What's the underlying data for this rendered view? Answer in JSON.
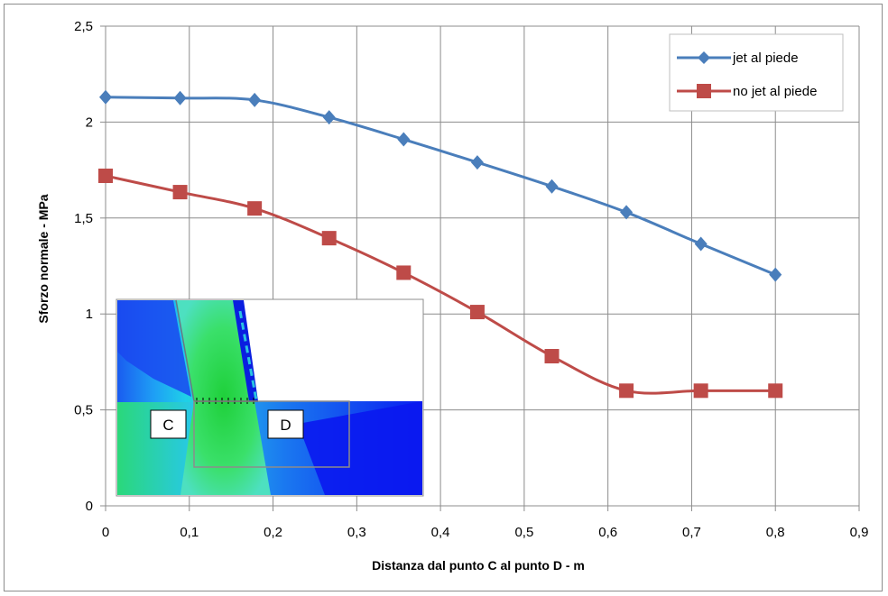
{
  "chart_data": {
    "type": "line",
    "title": "",
    "xlabel": "Distanza dal punto C al punto D - m",
    "ylabel": "Sforzo normale - MPa",
    "xlim": [
      0,
      0.9
    ],
    "ylim": [
      0,
      2.5
    ],
    "x_ticks": [
      "0",
      "0,1",
      "0,2",
      "0,3",
      "0,4",
      "0,5",
      "0,6",
      "0,7",
      "0,8",
      "0,9"
    ],
    "y_ticks": [
      "0",
      "0,5",
      "1",
      "1,5",
      "2",
      "2,5"
    ],
    "grid": "both",
    "legend_position": "top-right",
    "x": [
      0,
      0.089,
      0.178,
      0.267,
      0.356,
      0.444,
      0.533,
      0.622,
      0.711,
      0.8
    ],
    "series": [
      {
        "name": "jet al piede",
        "marker": "diamond",
        "color": "#4a7ebb",
        "values": [
          2.13,
          2.125,
          2.115,
          2.025,
          1.91,
          1.79,
          1.665,
          1.53,
          1.365,
          1.205
        ]
      },
      {
        "name": "no jet al piede",
        "marker": "square",
        "color": "#be4b48",
        "values": [
          1.72,
          1.635,
          1.55,
          1.395,
          1.215,
          1.01,
          0.78,
          0.6,
          0.6,
          0.6
        ]
      }
    ],
    "inset": {
      "labels": [
        "C",
        "D"
      ]
    }
  }
}
